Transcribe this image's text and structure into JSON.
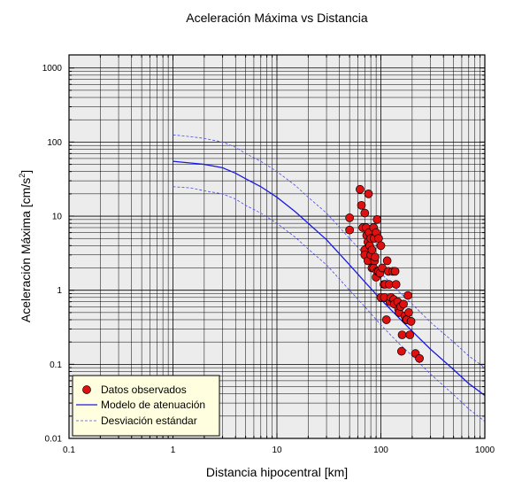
{
  "chart_data": {
    "type": "scatter",
    "title": "Aceleración Máxima vs Distancia",
    "xlabel": "Distancia hipocentral [km]",
    "ylabel_main": "Aceleración Máxima [cm/s",
    "ylabel_sup": "2",
    "ylabel_close": "]",
    "x_scale": "log",
    "y_scale": "log",
    "xlim": [
      0.1,
      1000
    ],
    "ylim": [
      0.01,
      1500
    ],
    "x_ticks": [
      {
        "value": 0.1,
        "label": "0.1"
      },
      {
        "value": 1,
        "label": "1"
      },
      {
        "value": 10,
        "label": "10"
      },
      {
        "value": 100,
        "label": "100"
      },
      {
        "value": 1000,
        "label": "1000"
      }
    ],
    "y_ticks": [
      {
        "value": 0.01,
        "label": "0.01"
      },
      {
        "value": 0.1,
        "label": "0.1"
      },
      {
        "value": 1,
        "label": "1"
      },
      {
        "value": 10,
        "label": "10"
      },
      {
        "value": 100,
        "label": "100"
      },
      {
        "value": 1000,
        "label": "1000"
      }
    ],
    "grid": true,
    "legend_position": "bottom-left",
    "colors": {
      "points": "#e01010",
      "model": "#1a1ae0",
      "deviation": "#4a4ae8",
      "plot_bg": "#ececec",
      "legend_bg": "#ffffe0"
    },
    "series": [
      {
        "name": "Datos observados",
        "kind": "points",
        "x": [
          50,
          50,
          63,
          65,
          67,
          70,
          70,
          70,
          72,
          73,
          75,
          75,
          76,
          77,
          78,
          80,
          80,
          82,
          82,
          85,
          85,
          86,
          87,
          88,
          90,
          90,
          92,
          92,
          95,
          95,
          98,
          100,
          100,
          103,
          107,
          108,
          110,
          113,
          115,
          118,
          120,
          122,
          125,
          130,
          133,
          135,
          137,
          140,
          145,
          148,
          150,
          155,
          158,
          160,
          165,
          170,
          175,
          178,
          182,
          185,
          190,
          195,
          215,
          235
        ],
        "y": [
          6.5,
          9.5,
          23,
          14,
          7,
          11,
          3.5,
          3,
          7,
          5.5,
          4.5,
          2.5,
          20,
          6,
          4,
          3,
          5,
          2,
          3.5,
          7,
          2,
          5,
          2.5,
          2.8,
          6,
          1.5,
          9,
          1.8,
          1.8,
          5,
          1.7,
          0.8,
          4,
          2,
          1.2,
          0.8,
          1.2,
          0.4,
          2.5,
          1.8,
          1.2,
          0.7,
          0.8,
          1.8,
          0.75,
          0.65,
          1.8,
          1.2,
          0.7,
          0.55,
          0.5,
          0.6,
          0.15,
          0.25,
          0.65,
          0.45,
          0.4,
          0.4,
          0.85,
          0.5,
          0.25,
          0.38,
          0.14,
          0.12
        ]
      },
      {
        "name": "Modelo de atenuación",
        "kind": "line",
        "x": [
          1,
          1.5,
          2,
          3,
          4,
          5,
          7,
          10,
          15,
          20,
          30,
          50,
          70,
          100,
          150,
          200,
          300,
          500,
          700,
          1000
        ],
        "y": [
          55,
          52,
          50,
          45,
          38,
          32,
          25,
          18,
          11.5,
          8,
          4.8,
          2.2,
          1.3,
          0.75,
          0.42,
          0.28,
          0.16,
          0.085,
          0.055,
          0.038
        ]
      },
      {
        "name": "Desviación estándar",
        "kind": "dashed",
        "x": [
          1,
          1.5,
          2,
          3,
          4,
          5,
          7,
          10,
          15,
          20,
          30,
          50,
          70,
          100,
          150,
          200,
          300,
          500,
          700,
          1000
        ],
        "y": [
          125,
          118,
          112,
          100,
          85,
          70,
          55,
          40,
          26,
          18,
          11,
          5,
          3,
          1.7,
          0.95,
          0.65,
          0.37,
          0.2,
          0.13,
          0.09
        ]
      },
      {
        "name": "",
        "kind": "dashed",
        "x": [
          1,
          1.5,
          2,
          3,
          4,
          5,
          7,
          10,
          15,
          20,
          30,
          50,
          70,
          100,
          150,
          200,
          300,
          500,
          700,
          1000
        ],
        "y": [
          25,
          24,
          22,
          20,
          17,
          14,
          11,
          8,
          5.2,
          3.6,
          2.2,
          1,
          0.6,
          0.34,
          0.19,
          0.13,
          0.074,
          0.039,
          0.025,
          0.017
        ]
      }
    ]
  }
}
